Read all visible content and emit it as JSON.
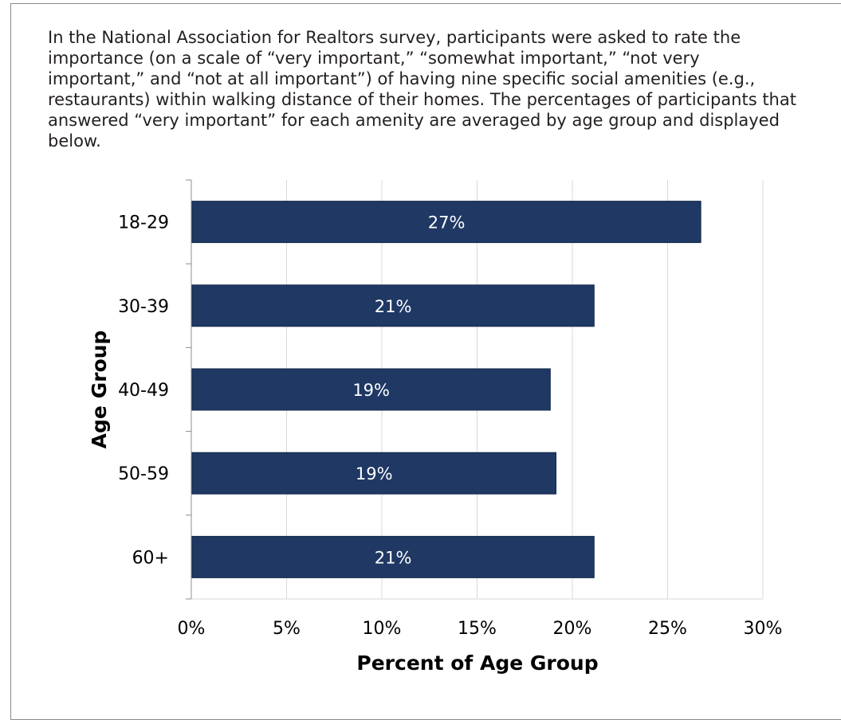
{
  "intro_text": "In the National Association for Realtors survey, participants were asked to rate the importance (on a scale of “very important,” “somewhat important,” “not very important,” and “not at all important”) of having nine specific social amenities (e.g., restaurants) within walking distance of their homes. The percentages of participants that answered “very important” for each amenity are averaged by age group and displayed below.",
  "colors": {
    "bar": "#1f3864",
    "bar_edge": "#142849",
    "grid": "#d9d9d9",
    "axis": "#8c8c8c"
  },
  "chart_data": {
    "type": "bar",
    "orientation": "horizontal",
    "categories": [
      "18-29",
      "30-39",
      "40-49",
      "50-59",
      "60+"
    ],
    "values": [
      26.7,
      21.1,
      18.8,
      19.1,
      21.1
    ],
    "data_labels": [
      "27%",
      "21%",
      "19%",
      "19%",
      "21%"
    ],
    "xlabel": "Percent of Age Group",
    "ylabel": "Age Group",
    "xlim": [
      0,
      30
    ],
    "xticks": [
      "0%",
      "5%",
      "10%",
      "15%",
      "20%",
      "25%",
      "30%"
    ],
    "grid": true
  }
}
